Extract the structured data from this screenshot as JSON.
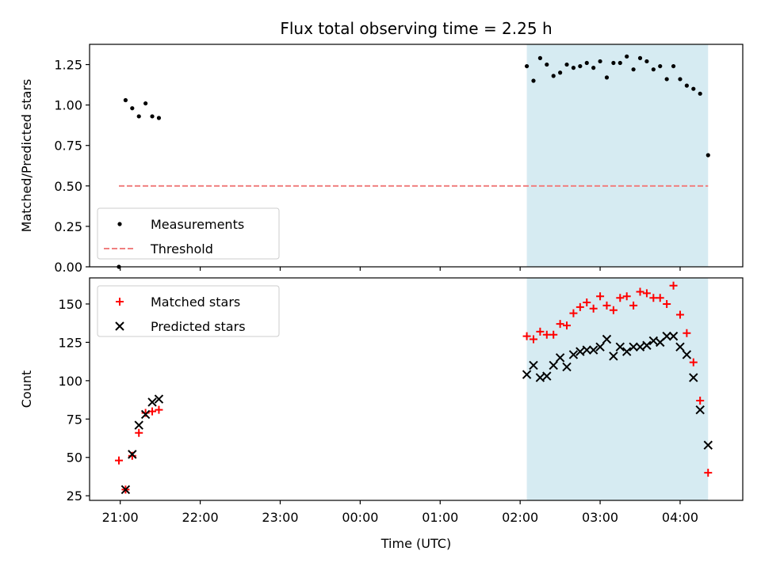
{
  "chart_data": [
    {
      "type": "scatter",
      "title": "Flux total observing time = 2.25 h",
      "xlabel": "",
      "ylabel": "Matched/Predicted stars",
      "xlim": [
        "20:37",
        "04:47"
      ],
      "ylim": [
        0,
        1.375
      ],
      "x_ticks": [],
      "y_ticks": [
        "0.00",
        "0.25",
        "0.50",
        "0.75",
        "1.00",
        "1.25"
      ],
      "grid": false,
      "legend_position": "lower-left",
      "shaded_interval": {
        "start": "02:05",
        "end": "04:21",
        "color": "#add8e6"
      },
      "series": [
        {
          "name": "Measurements",
          "marker": "dot",
          "color": "#000000",
          "x": [
            "20:59",
            "21:04",
            "21:09",
            "21:14",
            "21:19",
            "21:24",
            "21:29",
            "02:05",
            "02:10",
            "02:15",
            "02:20",
            "02:25",
            "02:30",
            "02:35",
            "02:40",
            "02:45",
            "02:50",
            "02:55",
            "03:00",
            "03:05",
            "03:10",
            "03:15",
            "03:20",
            "03:25",
            "03:30",
            "03:35",
            "03:40",
            "03:45",
            "03:50",
            "03:55",
            "04:00",
            "04:05",
            "04:10",
            "04:15",
            "04:21"
          ],
          "y": [
            0.0,
            1.03,
            0.98,
            0.93,
            1.01,
            0.93,
            0.92,
            1.24,
            1.15,
            1.29,
            1.25,
            1.18,
            1.2,
            1.25,
            1.23,
            1.24,
            1.26,
            1.23,
            1.27,
            1.17,
            1.26,
            1.26,
            1.3,
            1.22,
            1.29,
            1.27,
            1.22,
            1.24,
            1.16,
            1.24,
            1.16,
            1.12,
            1.1,
            1.07,
            0.69
          ]
        },
        {
          "name": "Threshold",
          "marker": "dashed-line",
          "color": "#f08080",
          "x": [
            "20:59",
            "04:21"
          ],
          "y": [
            0.5,
            0.5
          ]
        }
      ]
    },
    {
      "type": "scatter",
      "title": "",
      "xlabel": "Time (UTC)",
      "ylabel": "Count",
      "xlim": [
        "20:37",
        "04:47"
      ],
      "ylim": [
        22,
        167
      ],
      "x_ticks": [
        "21:00",
        "22:00",
        "23:00",
        "00:00",
        "01:00",
        "02:00",
        "03:00",
        "04:00"
      ],
      "y_ticks": [
        "25",
        "50",
        "75",
        "100",
        "125",
        "150"
      ],
      "grid": false,
      "legend_position": "upper-left",
      "shaded_interval": {
        "start": "02:05",
        "end": "04:21",
        "color": "#add8e6"
      },
      "series": [
        {
          "name": "Matched stars",
          "marker": "plus",
          "color": "#ff0000",
          "x": [
            "20:59",
            "21:04",
            "21:09",
            "21:14",
            "21:19",
            "21:24",
            "21:29",
            "02:05",
            "02:10",
            "02:15",
            "02:20",
            "02:25",
            "02:30",
            "02:35",
            "02:40",
            "02:45",
            "02:50",
            "02:55",
            "03:00",
            "03:05",
            "03:10",
            "03:15",
            "03:20",
            "03:25",
            "03:30",
            "03:35",
            "03:40",
            "03:45",
            "03:50",
            "03:55",
            "04:00",
            "04:05",
            "04:10",
            "04:15",
            "04:21"
          ],
          "y": [
            48,
            29,
            51,
            66,
            79,
            80,
            81,
            129,
            127,
            132,
            130,
            130,
            137,
            136,
            144,
            148,
            151,
            147,
            155,
            149,
            146,
            154,
            155,
            149,
            158,
            157,
            154,
            154,
            150,
            162,
            143,
            131,
            112,
            87,
            40
          ]
        },
        {
          "name": "Predicted stars",
          "marker": "x",
          "color": "#000000",
          "x": [
            "21:04",
            "21:09",
            "21:14",
            "21:19",
            "21:24",
            "21:29",
            "02:05",
            "02:10",
            "02:15",
            "02:20",
            "02:25",
            "02:30",
            "02:35",
            "02:40",
            "02:45",
            "02:50",
            "02:55",
            "03:00",
            "03:05",
            "03:10",
            "03:15",
            "03:20",
            "03:25",
            "03:30",
            "03:35",
            "03:40",
            "03:45",
            "03:50",
            "03:55",
            "04:00",
            "04:05",
            "04:10",
            "04:15",
            "04:21"
          ],
          "y": [
            29,
            52,
            71,
            78,
            86,
            88,
            104,
            110,
            102,
            103,
            110,
            115,
            109,
            117,
            119,
            120,
            120,
            122,
            127,
            116,
            122,
            119,
            122,
            122,
            123,
            126,
            125,
            129,
            129,
            122,
            117,
            102,
            81,
            58
          ]
        }
      ]
    }
  ]
}
